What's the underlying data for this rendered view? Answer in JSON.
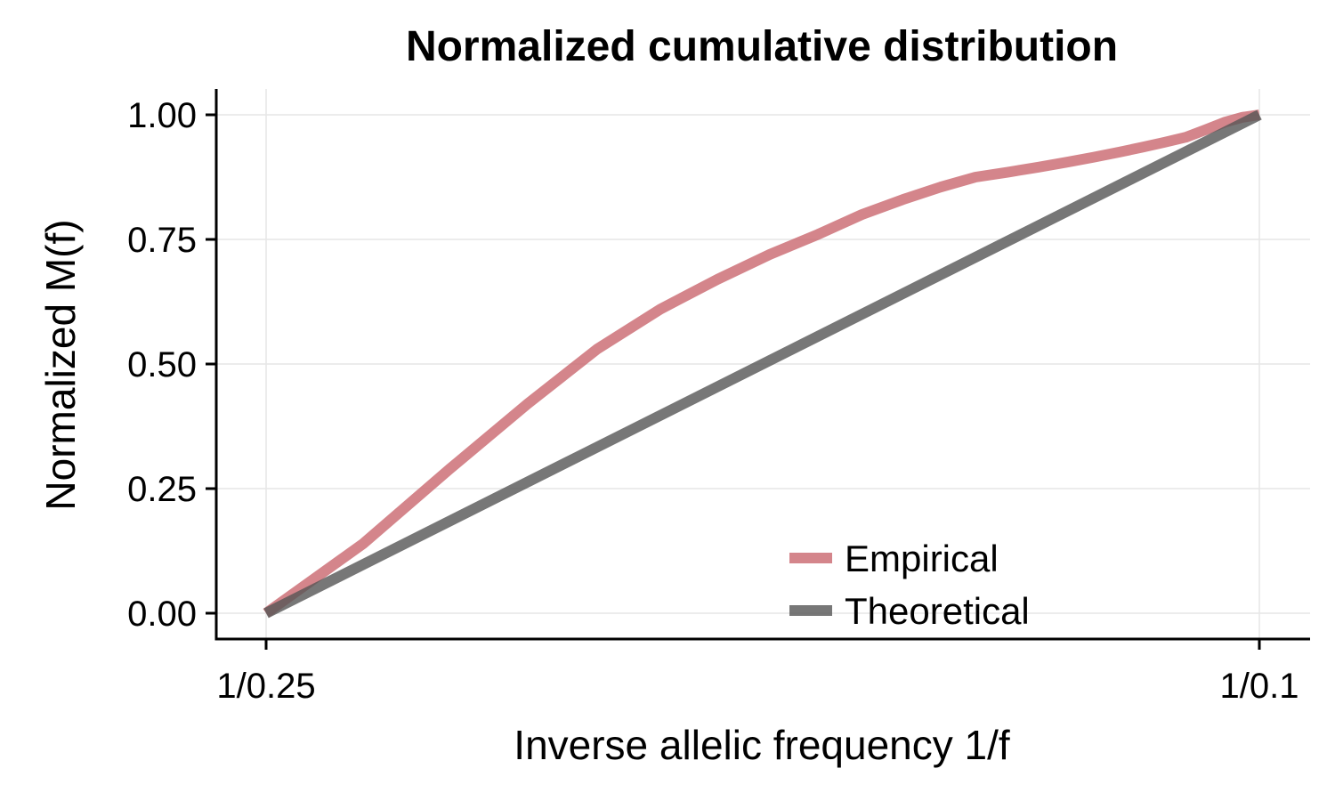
{
  "chart_data": {
    "type": "line",
    "title": "Normalized cumulative distribution",
    "xlabel": "Inverse allelic frequency 1/f",
    "ylabel": "Normalized M(f)",
    "x_scale": "reciprocal",
    "xlim": [
      4,
      10
    ],
    "ylim": [
      0,
      1
    ],
    "x_ticks": [
      {
        "value": 4,
        "label": "1/0.25"
      },
      {
        "value": 10,
        "label": "1/0.1"
      }
    ],
    "y_ticks": [
      {
        "value": 0,
        "label": "0.00"
      },
      {
        "value": 0.25,
        "label": "0.25"
      },
      {
        "value": 0.5,
        "label": "0.50"
      },
      {
        "value": 0.75,
        "label": "0.75"
      },
      {
        "value": 1,
        "label": "1.00"
      }
    ],
    "grid": true,
    "legend_position": "bottom-right",
    "series": [
      {
        "name": "Empirical",
        "color": "#c9666e",
        "x": [
          4.0,
          4.25,
          4.5,
          4.75,
          5.0,
          5.25,
          5.5,
          5.75,
          6.0,
          6.25,
          6.5,
          6.75,
          7.0,
          7.25,
          7.5,
          7.75,
          8.0,
          8.25,
          8.5,
          8.75,
          9.0,
          9.25,
          9.5,
          9.75,
          10.0
        ],
        "y": [
          0.0,
          0.14,
          0.29,
          0.42,
          0.53,
          0.61,
          0.67,
          0.72,
          0.76,
          0.8,
          0.83,
          0.855,
          0.875,
          0.885,
          0.895,
          0.905,
          0.915,
          0.925,
          0.935,
          0.945,
          0.955,
          0.97,
          0.985,
          0.995,
          1.0
        ]
      },
      {
        "name": "Theoretical",
        "color": "#555555",
        "x": [
          4.0,
          10.0
        ],
        "y": [
          0.0,
          1.0
        ]
      }
    ]
  }
}
